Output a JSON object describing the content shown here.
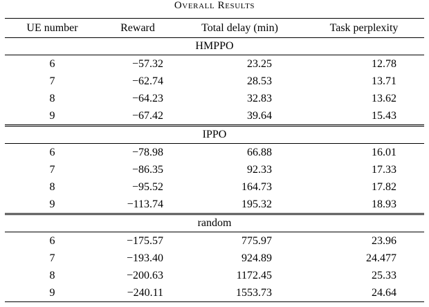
{
  "title": "Overall Results",
  "table": {
    "headers": [
      "UE number",
      "Reward",
      "Total delay (min)",
      "Task perplexity"
    ],
    "sections": [
      {
        "name": "HMPPO",
        "rows": [
          [
            "6",
            "−57.32",
            "23.25",
            "12.78"
          ],
          [
            "7",
            "−62.74",
            "28.53",
            "13.71"
          ],
          [
            "8",
            "−64.23",
            "32.83",
            "13.62"
          ],
          [
            "9",
            "−67.42",
            "39.64",
            "15.43"
          ]
        ]
      },
      {
        "name": "IPPO",
        "rows": [
          [
            "6",
            "−78.98",
            "66.88",
            "16.01"
          ],
          [
            "7",
            "−86.35",
            "92.33",
            "17.33"
          ],
          [
            "8",
            "−95.52",
            "164.73",
            "17.82"
          ],
          [
            "9",
            "−113.74",
            "195.32",
            "18.93"
          ]
        ]
      },
      {
        "name": "random",
        "rows": [
          [
            "6",
            "−175.57",
            "775.97",
            "23.96"
          ],
          [
            "7",
            "−193.40",
            "924.89",
            "24.477"
          ],
          [
            "8",
            "−200.63",
            "1172.45",
            "25.33"
          ],
          [
            "9",
            "−240.11",
            "1553.73",
            "24.64"
          ]
        ]
      }
    ]
  }
}
